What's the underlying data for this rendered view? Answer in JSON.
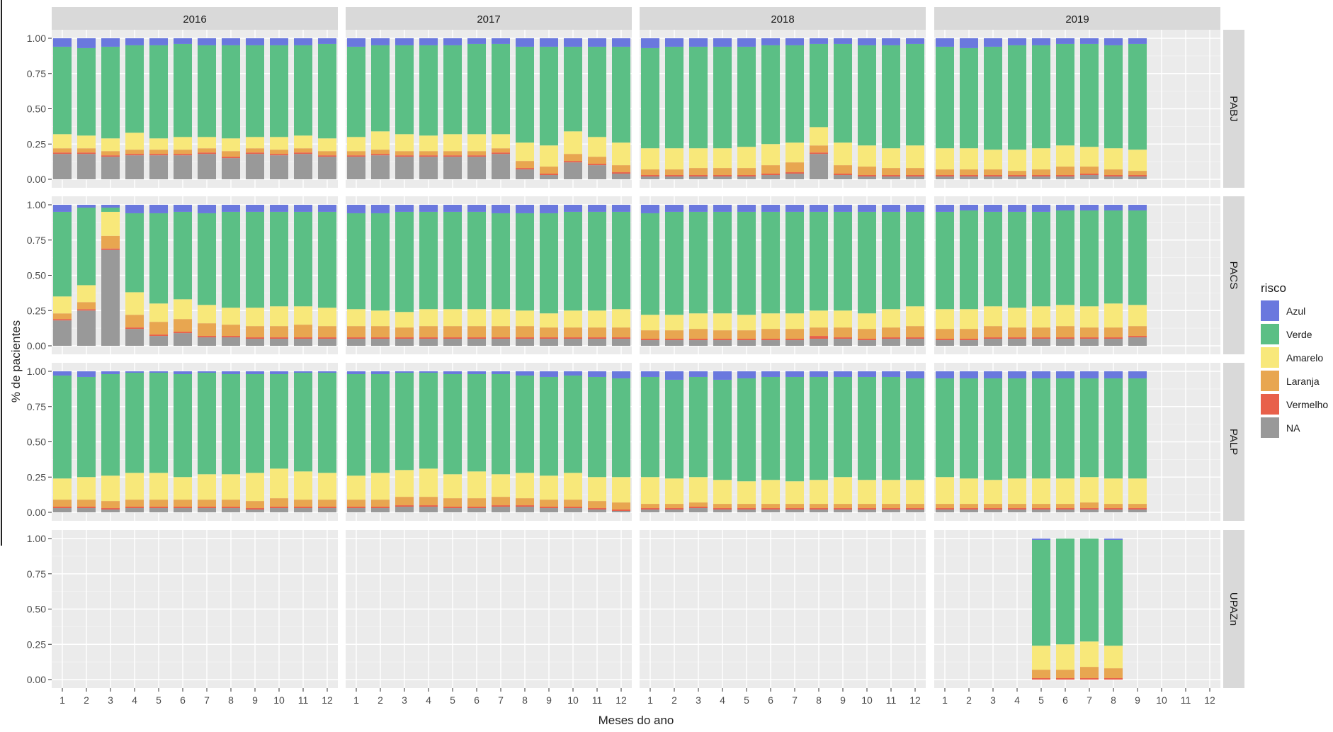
{
  "chart_data": {
    "type": "bar",
    "stacked": true,
    "facet_columns": [
      "2016",
      "2017",
      "2018",
      "2019"
    ],
    "facet_rows": [
      "PABJ",
      "PACS",
      "PALP",
      "UPAZn"
    ],
    "xlabel": "Meses do ano",
    "ylabel": "% de pacientes",
    "x_ticks": [
      "1",
      "2",
      "3",
      "4",
      "5",
      "6",
      "7",
      "8",
      "9",
      "10",
      "11",
      "12"
    ],
    "y_ticks": [
      "0.00",
      "0.25",
      "0.50",
      "0.75",
      "1.00"
    ],
    "ylim": [
      0,
      1
    ],
    "legend": {
      "title": "risco",
      "placement": "right",
      "entries": [
        {
          "key": "Azul",
          "label": "Azul",
          "color": "#6a78de"
        },
        {
          "key": "Verde",
          "label": "Verde",
          "color": "#5bbf85"
        },
        {
          "key": "Amarelo",
          "label": "Amarelo",
          "color": "#f8e87a"
        },
        {
          "key": "Laranja",
          "label": "Laranja",
          "color": "#e8a650"
        },
        {
          "key": "Vermelho",
          "label": "Vermelho",
          "color": "#e8604a"
        },
        {
          "key": "NA",
          "label": "NA",
          "color": "#999999"
        }
      ]
    },
    "stack_order_bottom_to_top": [
      "NA",
      "Vermelho",
      "Laranja",
      "Amarelo",
      "Verde",
      "Azul"
    ],
    "panels": {
      "PABJ": {
        "2016": {
          "NA": [
            0.18,
            0.18,
            0.16,
            0.17,
            0.17,
            0.17,
            0.18,
            0.15,
            0.18,
            0.17,
            0.18,
            0.16
          ],
          "Vermelho": [
            0.01,
            0.01,
            0.01,
            0.01,
            0.01,
            0.01,
            0.01,
            0.01,
            0.01,
            0.01,
            0.01,
            0.01
          ],
          "Laranja": [
            0.03,
            0.03,
            0.03,
            0.03,
            0.03,
            0.03,
            0.03,
            0.04,
            0.03,
            0.03,
            0.03,
            0.03
          ],
          "Amarelo": [
            0.1,
            0.09,
            0.09,
            0.12,
            0.08,
            0.09,
            0.08,
            0.09,
            0.08,
            0.09,
            0.09,
            0.09
          ],
          "Verde": [
            0.62,
            0.62,
            0.65,
            0.62,
            0.66,
            0.66,
            0.65,
            0.66,
            0.65,
            0.65,
            0.64,
            0.67
          ],
          "Azul": [
            0.06,
            0.07,
            0.06,
            0.05,
            0.05,
            0.04,
            0.05,
            0.05,
            0.05,
            0.05,
            0.05,
            0.04
          ]
        },
        "2017": {
          "NA": [
            0.16,
            0.17,
            0.16,
            0.16,
            0.16,
            0.16,
            0.18,
            0.07,
            0.03,
            0.12,
            0.1,
            0.04
          ],
          "Vermelho": [
            0.01,
            0.01,
            0.01,
            0.01,
            0.01,
            0.01,
            0.01,
            0.01,
            0.01,
            0.01,
            0.01,
            0.01
          ],
          "Laranja": [
            0.03,
            0.03,
            0.03,
            0.03,
            0.03,
            0.03,
            0.03,
            0.05,
            0.05,
            0.05,
            0.05,
            0.05
          ],
          "Amarelo": [
            0.1,
            0.13,
            0.12,
            0.11,
            0.12,
            0.12,
            0.1,
            0.13,
            0.15,
            0.16,
            0.14,
            0.16
          ],
          "Verde": [
            0.64,
            0.61,
            0.63,
            0.64,
            0.63,
            0.64,
            0.64,
            0.68,
            0.7,
            0.6,
            0.64,
            0.68
          ],
          "Azul": [
            0.06,
            0.05,
            0.05,
            0.05,
            0.05,
            0.04,
            0.04,
            0.06,
            0.06,
            0.06,
            0.06,
            0.06
          ]
        },
        "2018": {
          "NA": [
            0.02,
            0.02,
            0.02,
            0.02,
            0.02,
            0.03,
            0.04,
            0.18,
            0.03,
            0.02,
            0.02,
            0.02
          ],
          "Vermelho": [
            0.01,
            0.01,
            0.01,
            0.01,
            0.01,
            0.01,
            0.01,
            0.01,
            0.01,
            0.01,
            0.01,
            0.01
          ],
          "Laranja": [
            0.04,
            0.04,
            0.05,
            0.05,
            0.05,
            0.06,
            0.07,
            0.05,
            0.06,
            0.06,
            0.05,
            0.05
          ],
          "Amarelo": [
            0.15,
            0.15,
            0.14,
            0.14,
            0.15,
            0.15,
            0.14,
            0.13,
            0.16,
            0.15,
            0.14,
            0.16
          ],
          "Verde": [
            0.71,
            0.72,
            0.72,
            0.72,
            0.71,
            0.7,
            0.69,
            0.59,
            0.7,
            0.71,
            0.73,
            0.72
          ],
          "Azul": [
            0.07,
            0.06,
            0.06,
            0.06,
            0.06,
            0.05,
            0.05,
            0.04,
            0.04,
            0.05,
            0.05,
            0.04
          ]
        },
        "2019": {
          "NA": [
            0.02,
            0.02,
            0.02,
            0.02,
            0.02,
            0.02,
            0.03,
            0.02,
            0.02
          ],
          "Vermelho": [
            0.01,
            0.01,
            0.01,
            0.01,
            0.01,
            0.01,
            0.01,
            0.01,
            0.01
          ],
          "Laranja": [
            0.04,
            0.04,
            0.04,
            0.03,
            0.04,
            0.06,
            0.05,
            0.04,
            0.03
          ],
          "Amarelo": [
            0.15,
            0.15,
            0.14,
            0.15,
            0.15,
            0.15,
            0.14,
            0.15,
            0.15
          ],
          "Verde": [
            0.72,
            0.71,
            0.73,
            0.74,
            0.73,
            0.72,
            0.73,
            0.73,
            0.75
          ],
          "Azul": [
            0.06,
            0.07,
            0.06,
            0.05,
            0.05,
            0.04,
            0.04,
            0.05,
            0.04
          ]
        }
      },
      "PACS": {
        "2016": {
          "NA": [
            0.18,
            0.25,
            0.68,
            0.12,
            0.07,
            0.09,
            0.06,
            0.06,
            0.05,
            0.05,
            0.05,
            0.05
          ],
          "Vermelho": [
            0.01,
            0.01,
            0.01,
            0.01,
            0.01,
            0.01,
            0.01,
            0.01,
            0.01,
            0.01,
            0.01,
            0.01
          ],
          "Laranja": [
            0.04,
            0.05,
            0.09,
            0.09,
            0.09,
            0.09,
            0.09,
            0.08,
            0.08,
            0.08,
            0.09,
            0.08
          ],
          "Amarelo": [
            0.12,
            0.12,
            0.17,
            0.16,
            0.13,
            0.14,
            0.13,
            0.12,
            0.13,
            0.14,
            0.13,
            0.13
          ],
          "Verde": [
            0.6,
            0.55,
            0.03,
            0.56,
            0.64,
            0.62,
            0.65,
            0.68,
            0.68,
            0.67,
            0.67,
            0.68
          ],
          "Azul": [
            0.05,
            0.02,
            0.02,
            0.06,
            0.06,
            0.05,
            0.06,
            0.05,
            0.05,
            0.05,
            0.05,
            0.05
          ]
        },
        "2017": {
          "NA": [
            0.05,
            0.05,
            0.05,
            0.05,
            0.05,
            0.05,
            0.05,
            0.05,
            0.05,
            0.05,
            0.05,
            0.05
          ],
          "Vermelho": [
            0.01,
            0.01,
            0.01,
            0.01,
            0.01,
            0.01,
            0.01,
            0.01,
            0.01,
            0.01,
            0.01,
            0.01
          ],
          "Laranja": [
            0.08,
            0.08,
            0.07,
            0.08,
            0.08,
            0.08,
            0.08,
            0.08,
            0.07,
            0.07,
            0.07,
            0.07
          ],
          "Amarelo": [
            0.12,
            0.11,
            0.11,
            0.12,
            0.12,
            0.12,
            0.12,
            0.11,
            0.1,
            0.12,
            0.12,
            0.13
          ],
          "Verde": [
            0.68,
            0.69,
            0.71,
            0.69,
            0.69,
            0.69,
            0.68,
            0.69,
            0.71,
            0.7,
            0.7,
            0.69
          ],
          "Azul": [
            0.06,
            0.06,
            0.05,
            0.05,
            0.05,
            0.05,
            0.06,
            0.06,
            0.06,
            0.05,
            0.05,
            0.05
          ]
        },
        "2018": {
          "NA": [
            0.04,
            0.04,
            0.04,
            0.04,
            0.04,
            0.04,
            0.04,
            0.05,
            0.05,
            0.04,
            0.05,
            0.05
          ],
          "Vermelho": [
            0.01,
            0.01,
            0.01,
            0.01,
            0.01,
            0.01,
            0.01,
            0.02,
            0.01,
            0.01,
            0.01,
            0.01
          ],
          "Laranja": [
            0.06,
            0.06,
            0.07,
            0.06,
            0.06,
            0.07,
            0.07,
            0.06,
            0.07,
            0.07,
            0.07,
            0.08
          ],
          "Amarelo": [
            0.11,
            0.11,
            0.11,
            0.12,
            0.11,
            0.11,
            0.11,
            0.12,
            0.12,
            0.11,
            0.13,
            0.14
          ],
          "Verde": [
            0.72,
            0.73,
            0.72,
            0.72,
            0.73,
            0.72,
            0.72,
            0.7,
            0.7,
            0.72,
            0.69,
            0.67
          ],
          "Azul": [
            0.06,
            0.05,
            0.05,
            0.05,
            0.05,
            0.05,
            0.05,
            0.05,
            0.05,
            0.05,
            0.05,
            0.05
          ]
        },
        "2019": {
          "NA": [
            0.04,
            0.04,
            0.05,
            0.05,
            0.05,
            0.05,
            0.05,
            0.05,
            0.06
          ],
          "Vermelho": [
            0.01,
            0.01,
            0.01,
            0.01,
            0.01,
            0.01,
            0.01,
            0.01,
            0.01
          ],
          "Laranja": [
            0.07,
            0.07,
            0.08,
            0.07,
            0.07,
            0.08,
            0.07,
            0.07,
            0.07
          ],
          "Amarelo": [
            0.14,
            0.14,
            0.14,
            0.14,
            0.15,
            0.15,
            0.15,
            0.17,
            0.15
          ],
          "Verde": [
            0.69,
            0.7,
            0.67,
            0.68,
            0.67,
            0.67,
            0.68,
            0.66,
            0.67
          ],
          "Azul": [
            0.05,
            0.04,
            0.05,
            0.05,
            0.05,
            0.04,
            0.04,
            0.04,
            0.04
          ]
        }
      },
      "PALP": {
        "2016": {
          "NA": [
            0.03,
            0.03,
            0.02,
            0.03,
            0.03,
            0.03,
            0.03,
            0.03,
            0.02,
            0.03,
            0.03,
            0.03
          ],
          "Vermelho": [
            0.01,
            0.01,
            0.01,
            0.01,
            0.01,
            0.01,
            0.01,
            0.01,
            0.01,
            0.01,
            0.01,
            0.01
          ],
          "Laranja": [
            0.05,
            0.05,
            0.05,
            0.05,
            0.05,
            0.05,
            0.05,
            0.05,
            0.05,
            0.06,
            0.05,
            0.05
          ],
          "Amarelo": [
            0.15,
            0.16,
            0.18,
            0.19,
            0.19,
            0.16,
            0.18,
            0.18,
            0.2,
            0.21,
            0.2,
            0.19
          ],
          "Verde": [
            0.73,
            0.71,
            0.72,
            0.71,
            0.71,
            0.73,
            0.72,
            0.71,
            0.7,
            0.67,
            0.7,
            0.71
          ],
          "Azul": [
            0.03,
            0.04,
            0.02,
            0.01,
            0.01,
            0.02,
            0.01,
            0.02,
            0.02,
            0.02,
            0.01,
            0.01
          ]
        },
        "2017": {
          "NA": [
            0.03,
            0.03,
            0.04,
            0.04,
            0.03,
            0.03,
            0.04,
            0.04,
            0.03,
            0.03,
            0.02,
            0.01
          ],
          "Vermelho": [
            0.01,
            0.01,
            0.01,
            0.01,
            0.01,
            0.01,
            0.01,
            0.01,
            0.01,
            0.01,
            0.01,
            0.01
          ],
          "Laranja": [
            0.05,
            0.05,
            0.06,
            0.06,
            0.06,
            0.06,
            0.06,
            0.05,
            0.05,
            0.05,
            0.05,
            0.05
          ],
          "Amarelo": [
            0.17,
            0.19,
            0.19,
            0.2,
            0.17,
            0.19,
            0.16,
            0.18,
            0.17,
            0.19,
            0.17,
            0.18
          ],
          "Verde": [
            0.72,
            0.7,
            0.69,
            0.68,
            0.71,
            0.69,
            0.71,
            0.69,
            0.7,
            0.69,
            0.71,
            0.7
          ],
          "Azul": [
            0.02,
            0.02,
            0.01,
            0.01,
            0.02,
            0.02,
            0.02,
            0.03,
            0.04,
            0.03,
            0.04,
            0.05
          ]
        },
        "2018": {
          "NA": [
            0.02,
            0.02,
            0.03,
            0.02,
            0.02,
            0.02,
            0.02,
            0.02,
            0.02,
            0.02,
            0.02,
            0.02
          ],
          "Vermelho": [
            0.01,
            0.01,
            0.01,
            0.01,
            0.01,
            0.01,
            0.01,
            0.01,
            0.01,
            0.01,
            0.01,
            0.01
          ],
          "Laranja": [
            0.03,
            0.03,
            0.03,
            0.03,
            0.03,
            0.03,
            0.03,
            0.03,
            0.03,
            0.03,
            0.03,
            0.03
          ],
          "Amarelo": [
            0.19,
            0.18,
            0.18,
            0.17,
            0.16,
            0.17,
            0.16,
            0.17,
            0.19,
            0.17,
            0.17,
            0.17
          ],
          "Verde": [
            0.71,
            0.7,
            0.71,
            0.71,
            0.73,
            0.73,
            0.74,
            0.73,
            0.71,
            0.73,
            0.73,
            0.72
          ],
          "Azul": [
            0.04,
            0.06,
            0.04,
            0.06,
            0.05,
            0.04,
            0.04,
            0.04,
            0.04,
            0.04,
            0.04,
            0.05
          ]
        },
        "2019": {
          "NA": [
            0.02,
            0.02,
            0.02,
            0.02,
            0.02,
            0.02,
            0.02,
            0.02,
            0.02
          ],
          "Vermelho": [
            0.01,
            0.01,
            0.01,
            0.01,
            0.01,
            0.01,
            0.01,
            0.01,
            0.01
          ],
          "Laranja": [
            0.03,
            0.03,
            0.03,
            0.03,
            0.03,
            0.03,
            0.04,
            0.03,
            0.03
          ],
          "Amarelo": [
            0.19,
            0.18,
            0.17,
            0.18,
            0.18,
            0.18,
            0.18,
            0.18,
            0.18
          ],
          "Verde": [
            0.7,
            0.71,
            0.72,
            0.71,
            0.71,
            0.71,
            0.7,
            0.71,
            0.71
          ],
          "Azul": [
            0.05,
            0.05,
            0.05,
            0.05,
            0.05,
            0.05,
            0.05,
            0.05,
            0.05
          ]
        }
      },
      "UPAZn": {
        "2016": null,
        "2017": null,
        "2018": null,
        "2019": {
          "months": [
            5,
            6,
            7,
            8
          ],
          "NA": [
            0,
            0,
            0,
            0
          ],
          "Vermelho": [
            0.01,
            0.01,
            0.01,
            0.01
          ],
          "Laranja": [
            0.06,
            0.06,
            0.08,
            0.07
          ],
          "Amarelo": [
            0.17,
            0.18,
            0.18,
            0.16
          ],
          "Verde": [
            0.75,
            0.75,
            0.73,
            0.75
          ],
          "Azul": [
            0.01,
            0.0,
            0.0,
            0.01
          ]
        }
      }
    }
  }
}
